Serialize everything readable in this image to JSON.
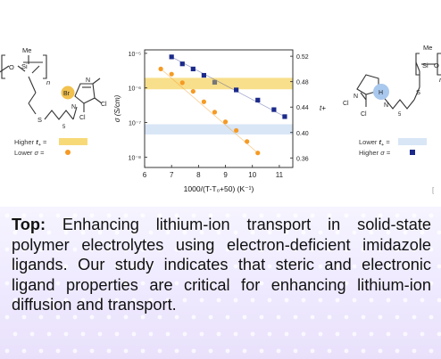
{
  "figure": {
    "left_molecule": {
      "si": "Si",
      "o": "O",
      "me": "Me",
      "n": "n",
      "br": "Br",
      "n_atom_1": "N",
      "n_atom_2": "N",
      "cl1": "Cl",
      "cl2": "Cl",
      "s": "S",
      "sub5": "5"
    },
    "right_molecule": {
      "si": "Si",
      "o": "O",
      "me": "Me",
      "n": "n",
      "h": "H",
      "n_atom_1": "N",
      "n_atom_2": "N",
      "cl1": "Cl",
      "cl2": "Cl",
      "s": "S",
      "sub5": "5"
    },
    "left_legend": {
      "higher_t": "Higher",
      "t_sym": "t",
      "t_sub": "+",
      "eq": "=",
      "lower_sigma": "Lower",
      "sigma_sym": "σ",
      "eq2": "="
    },
    "right_legend": {
      "lower_t": "Lower",
      "t_sym": "t",
      "t_sub": "+",
      "eq": "=",
      "higher_sigma": "Higher",
      "sigma_sym": "σ",
      "eq2": "="
    },
    "colors": {
      "band_gold": "#f7d978",
      "band_blue": "#d8e6f6",
      "orange": "#f59a23",
      "navy": "#1b2a8a",
      "br_circle": "#f2c14e",
      "h_circle": "#a9c8ee"
    }
  },
  "chart_data": {
    "type": "scatter",
    "xlabel": "1000/(T-T₀+50) (K⁻¹)",
    "ylabel_left": "σ (S/cm)",
    "ylabel_right": "t+",
    "x_ticks": [
      "6",
      "7",
      "8",
      "9",
      "10",
      "11"
    ],
    "y_left_ticks": [
      "10⁻⁵",
      "10⁻⁶",
      "10⁻⁷",
      "10⁻⁸"
    ],
    "y_right_ticks": [
      "0.52",
      "0.48",
      "0.44",
      "0.40",
      "0.36"
    ],
    "xlim": [
      6,
      11.5
    ],
    "ylim_left_log10": [
      -8.3,
      -4.9
    ],
    "ylim_right": [
      0.345,
      0.53
    ],
    "series": [
      {
        "values": [
          [
            6.6,
            -5.45
          ],
          [
            7.0,
            -5.6
          ],
          [
            7.4,
            -5.85
          ],
          [
            7.8,
            -6.1
          ],
          [
            8.2,
            -6.4
          ],
          [
            8.6,
            -6.7
          ],
          [
            9.0,
            -6.98
          ],
          [
            9.4,
            -7.23
          ],
          [
            9.8,
            -7.55
          ],
          [
            10.2,
            -7.88
          ]
        ]
      },
      {
        "values": [
          [
            7.0,
            0.519
          ],
          [
            7.4,
            0.508
          ],
          [
            7.8,
            0.5
          ],
          [
            8.2,
            0.49
          ],
          [
            8.6,
            0.479
          ],
          [
            9.4,
            0.467
          ],
          [
            10.2,
            0.451
          ],
          [
            10.8,
            0.436
          ],
          [
            11.2,
            0.425
          ]
        ]
      }
    ],
    "bands": [
      {
        "axis": "right",
        "from": 0.468,
        "to": 0.486
      },
      {
        "axis": "right",
        "from": 0.397,
        "to": 0.413
      }
    ]
  },
  "caption": {
    "lead": "Top:",
    "body": " Enhancing lithium-ion transport in solid-state polymer electrolytes using electron-deficient imidazole ligands. Our study indicates that steric and electronic ligand properties are critical for enhancing lithium-ion diffusion and transport."
  }
}
